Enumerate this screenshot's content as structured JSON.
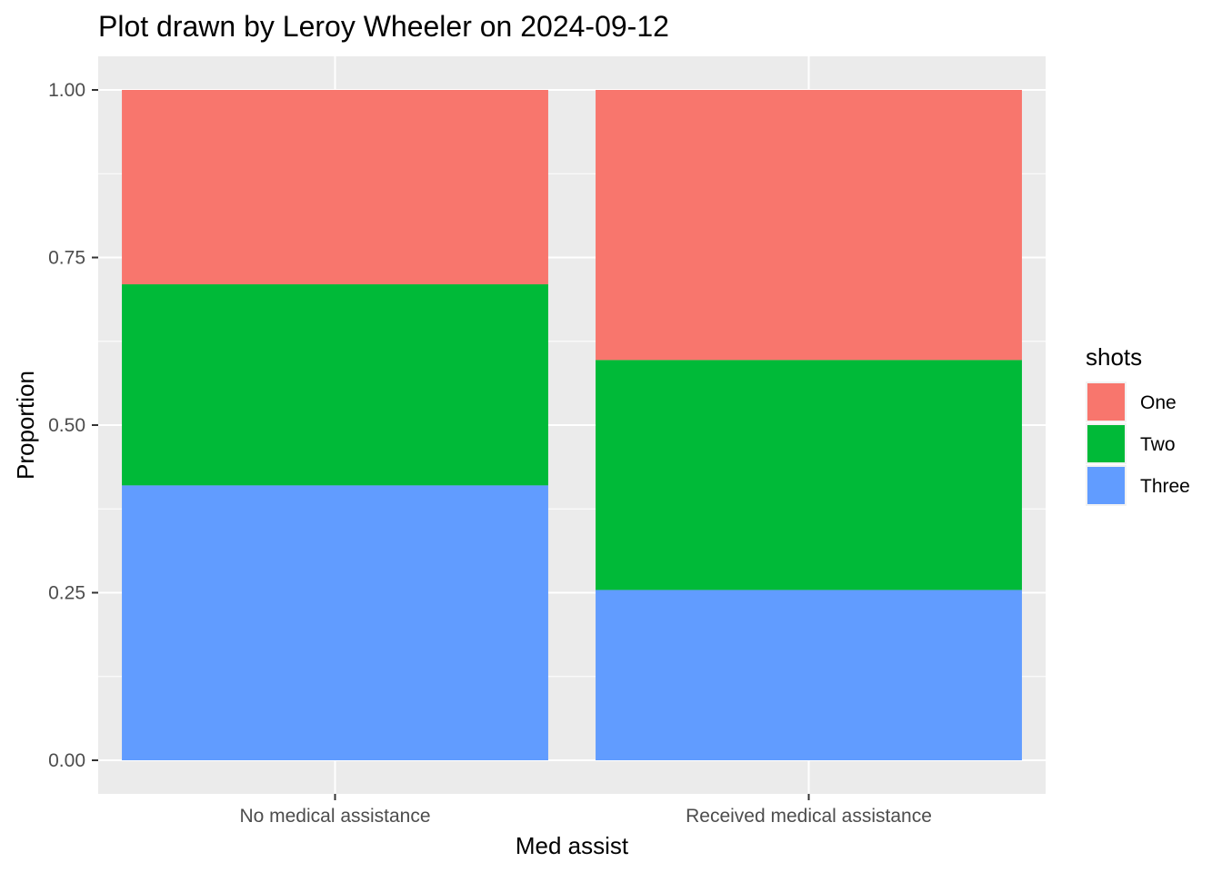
{
  "chart_data": {
    "type": "bar",
    "stacked": true,
    "title": "Plot drawn by Leroy Wheeler on 2024-09-12",
    "xlabel": "Med assist",
    "ylabel": "Proportion",
    "categories": [
      "No medical assistance",
      "Received medical assistance"
    ],
    "series": [
      {
        "name": "One",
        "color": "#F8766D",
        "values": [
          0.29,
          0.403
        ]
      },
      {
        "name": "Two",
        "color": "#00BA38",
        "values": [
          0.3,
          0.343
        ]
      },
      {
        "name": "Three",
        "color": "#619CFF",
        "values": [
          0.41,
          0.254
        ]
      }
    ],
    "ylim": [
      0,
      1
    ],
    "yticks": [
      0,
      0.25,
      0.5,
      0.75,
      1
    ],
    "ytick_labels": [
      "0.00",
      "0.25",
      "0.50",
      "0.75",
      "1.00"
    ],
    "grid": true,
    "legend": {
      "title": "shots",
      "position": "right"
    },
    "panel_background": "#EBEBEB"
  }
}
